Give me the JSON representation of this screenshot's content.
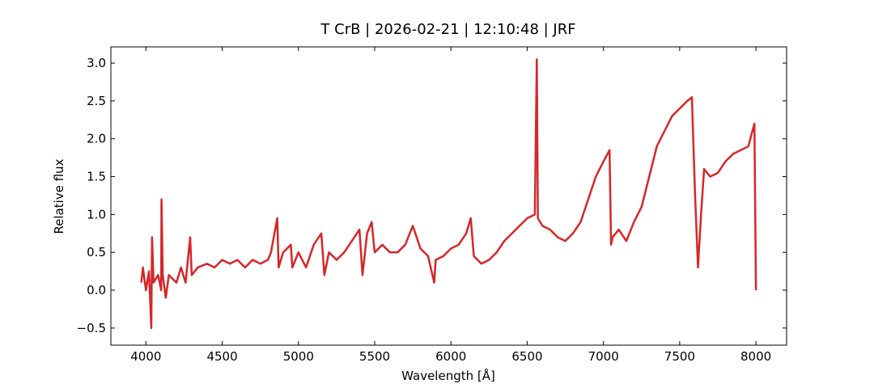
{
  "chart_data": {
    "type": "line",
    "title": "T CrB | 2026-02-21 | 12:10:48 | JRF",
    "xlabel": "Wavelength [Å]",
    "ylabel": "Relative flux",
    "color": "#d62728",
    "x": [
      3970,
      3980,
      4000,
      4020,
      4035,
      4040,
      4050,
      4080,
      4100,
      4102,
      4110,
      4130,
      4150,
      4200,
      4230,
      4260,
      4290,
      4300,
      4340,
      4400,
      4450,
      4500,
      4550,
      4600,
      4650,
      4700,
      4750,
      4800,
      4820,
      4861,
      4870,
      4900,
      4950,
      4960,
      5000,
      5050,
      5100,
      5150,
      5170,
      5200,
      5250,
      5300,
      5350,
      5400,
      5420,
      5450,
      5480,
      5500,
      5550,
      5600,
      5650,
      5700,
      5750,
      5800,
      5850,
      5890,
      5900,
      5950,
      6000,
      6050,
      6100,
      6130,
      6150,
      6200,
      6250,
      6300,
      6350,
      6400,
      6450,
      6500,
      6550,
      6563,
      6570,
      6600,
      6650,
      6700,
      6750,
      6800,
      6850,
      6900,
      6950,
      7000,
      7040,
      7050,
      7060,
      7100,
      7150,
      7200,
      7250,
      7300,
      7350,
      7400,
      7450,
      7500,
      7550,
      7580,
      7600,
      7620,
      7640,
      7660,
      7700,
      7750,
      7800,
      7850,
      7900,
      7950,
      7990,
      8000
    ],
    "values": [
      0.1,
      0.3,
      0.0,
      0.25,
      -0.5,
      0.7,
      0.1,
      0.2,
      0.0,
      1.2,
      0.2,
      -0.1,
      0.2,
      0.1,
      0.3,
      0.1,
      0.7,
      0.2,
      0.3,
      0.35,
      0.3,
      0.4,
      0.35,
      0.4,
      0.3,
      0.4,
      0.35,
      0.4,
      0.5,
      0.95,
      0.3,
      0.5,
      0.6,
      0.3,
      0.5,
      0.3,
      0.6,
      0.75,
      0.2,
      0.5,
      0.4,
      0.5,
      0.65,
      0.8,
      0.2,
      0.75,
      0.9,
      0.5,
      0.6,
      0.5,
      0.5,
      0.6,
      0.85,
      0.55,
      0.45,
      0.1,
      0.4,
      0.45,
      0.55,
      0.6,
      0.75,
      0.95,
      0.45,
      0.35,
      0.4,
      0.5,
      0.65,
      0.75,
      0.85,
      0.95,
      1.0,
      3.05,
      0.95,
      0.85,
      0.8,
      0.7,
      0.65,
      0.75,
      0.9,
      1.2,
      1.5,
      1.7,
      1.85,
      0.6,
      0.7,
      0.8,
      0.65,
      0.9,
      1.1,
      1.5,
      1.9,
      2.1,
      2.3,
      2.4,
      2.5,
      2.55,
      1.3,
      0.3,
      1.0,
      1.6,
      1.5,
      1.55,
      1.7,
      1.8,
      1.85,
      1.9,
      2.2,
      0.0
    ],
    "xlim": [
      3770,
      8201
    ],
    "ylim": [
      -0.726,
      3.214
    ],
    "xticks": [
      4000,
      4500,
      5000,
      5500,
      6000,
      6500,
      7000,
      7500,
      8000
    ],
    "yticks": [
      {
        "value": -0.5,
        "label": "−0.5"
      },
      {
        "value": 0,
        "label": "0.0"
      },
      {
        "value": 0.5,
        "label": "0.5"
      },
      {
        "value": 1,
        "label": "1.0"
      },
      {
        "value": 1.5,
        "label": "1.5"
      },
      {
        "value": 2,
        "label": "2.0"
      },
      {
        "value": 2.5,
        "label": "2.5"
      },
      {
        "value": 3,
        "label": "3.0"
      }
    ]
  }
}
